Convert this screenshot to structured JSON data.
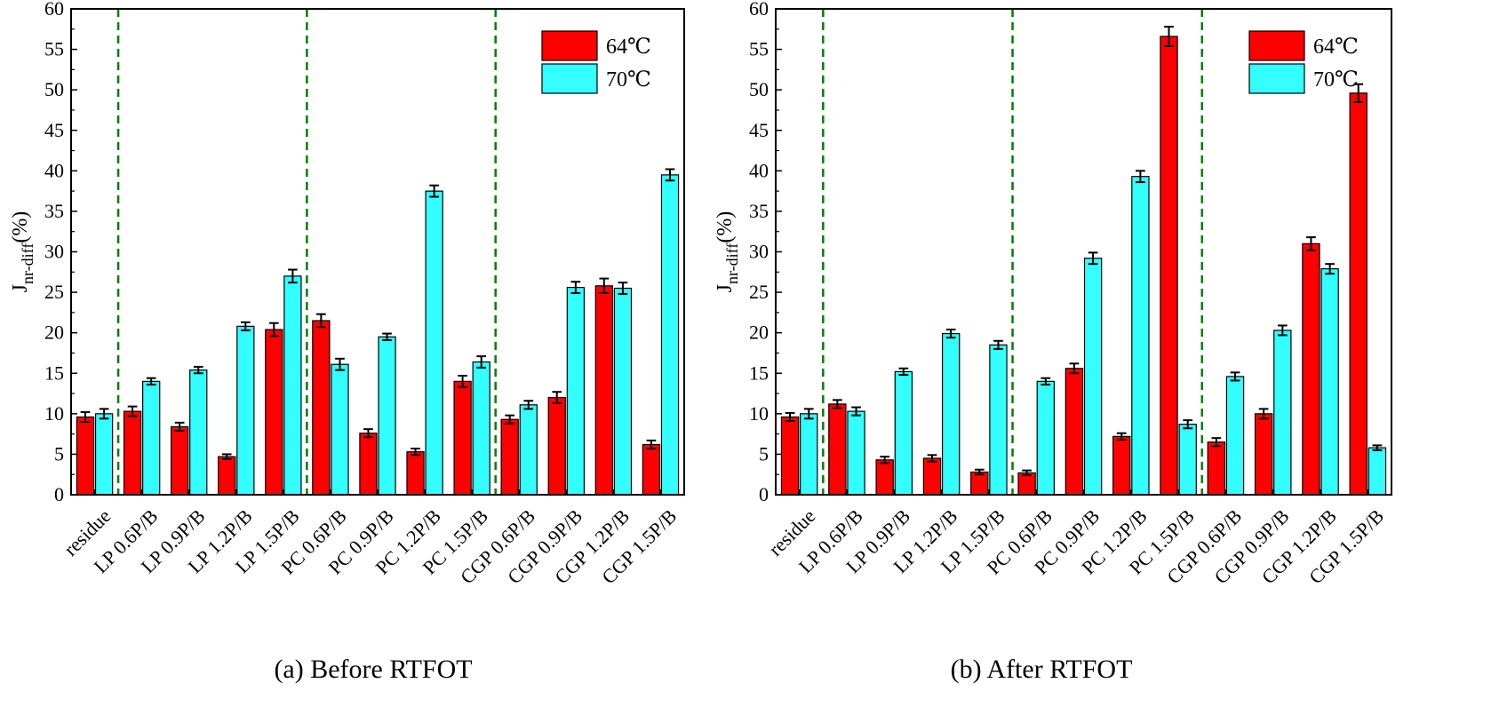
{
  "colors": {
    "series_64": "#ff0000",
    "series_70": "#33ffff",
    "divider": "#008000",
    "axis": "#000000"
  },
  "chart_data": [
    {
      "type": "bar",
      "caption": "(a) Before RTFOT",
      "ylabel_main": "J",
      "ylabel_sub": "nr-diff",
      "ylabel_unit": "(%)",
      "ylim": [
        0,
        60
      ],
      "yticks": [
        0,
        5,
        10,
        15,
        20,
        25,
        30,
        35,
        40,
        45,
        50,
        55,
        60
      ],
      "categories": [
        "residue",
        "LP 0.6P/B",
        "LP 0.9P/B",
        "LP 1.2P/B",
        "LP 1.5P/B",
        "PC 0.6P/B",
        "PC 0.9P/B",
        "PC 1.2P/B",
        "PC 1.5P/B",
        "CGP 0.6P/B",
        "CGP 0.9P/B",
        "CGP 1.2P/B",
        "CGP 1.5P/B"
      ],
      "series": [
        {
          "name": "64℃",
          "values": [
            9.6,
            10.3,
            8.4,
            4.7,
            20.4,
            21.5,
            7.6,
            5.3,
            14.0,
            9.3,
            12.0,
            25.8,
            6.2
          ],
          "errors": [
            0.6,
            0.6,
            0.5,
            0.3,
            0.8,
            0.8,
            0.5,
            0.4,
            0.7,
            0.5,
            0.7,
            0.9,
            0.5
          ]
        },
        {
          "name": "70℃",
          "values": [
            10.0,
            14.0,
            15.4,
            20.8,
            27.0,
            16.1,
            19.5,
            37.5,
            16.4,
            11.1,
            25.6,
            25.5,
            39.5
          ],
          "errors": [
            0.6,
            0.4,
            0.4,
            0.5,
            0.8,
            0.7,
            0.4,
            0.7,
            0.7,
            0.5,
            0.7,
            0.7,
            0.7
          ]
        }
      ],
      "dividers_after": [
        0,
        4,
        8
      ],
      "legend": "top-right"
    },
    {
      "type": "bar",
      "caption": "(b) After RTFOT",
      "ylabel_main": "J",
      "ylabel_sub": "nr-diff",
      "ylabel_unit": "(%)",
      "ylim": [
        0,
        60
      ],
      "yticks": [
        0,
        5,
        10,
        15,
        20,
        25,
        30,
        35,
        40,
        45,
        50,
        55,
        60
      ],
      "categories": [
        "residue",
        "LP 0.6P/B",
        "LP 0.9P/B",
        "LP 1.2P/B",
        "LP 1.5P/B",
        "PC 0.6P/B",
        "PC 0.9P/B",
        "PC 1.2P/B",
        "PC 1.5P/B",
        "CGP 0.6P/B",
        "CGP 0.9P/B",
        "CGP 1.2P/B",
        "CGP 1.5P/B"
      ],
      "series": [
        {
          "name": "64℃",
          "values": [
            9.6,
            11.2,
            4.3,
            4.5,
            2.8,
            2.7,
            15.6,
            7.2,
            56.6,
            6.5,
            10.0,
            31.0,
            49.6
          ],
          "errors": [
            0.5,
            0.5,
            0.4,
            0.4,
            0.3,
            0.3,
            0.6,
            0.4,
            1.2,
            0.5,
            0.6,
            0.8,
            1.1
          ]
        },
        {
          "name": "70℃",
          "values": [
            10.0,
            10.3,
            15.2,
            19.9,
            18.5,
            14.0,
            29.2,
            39.3,
            8.7,
            14.6,
            20.3,
            27.9,
            5.8
          ],
          "errors": [
            0.6,
            0.5,
            0.4,
            0.5,
            0.5,
            0.4,
            0.7,
            0.7,
            0.5,
            0.5,
            0.6,
            0.6,
            0.3
          ]
        }
      ],
      "dividers_after": [
        0,
        4,
        8
      ],
      "legend": "top-right"
    }
  ]
}
